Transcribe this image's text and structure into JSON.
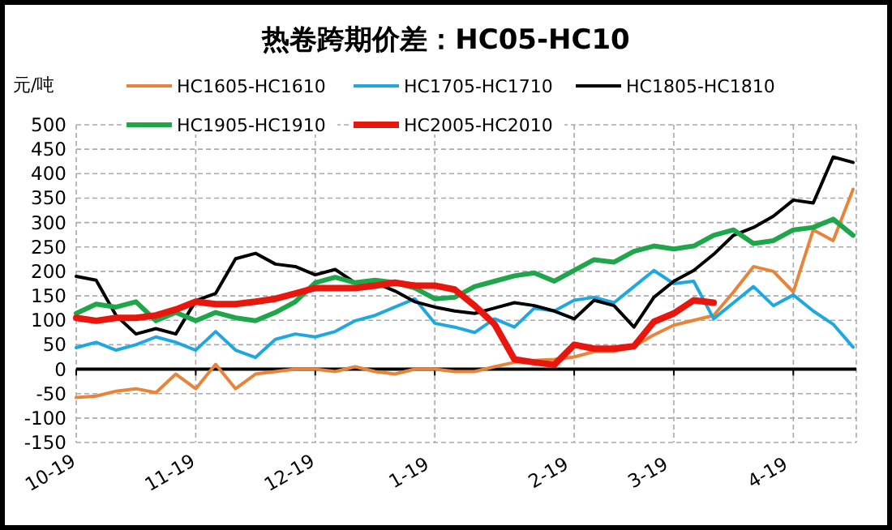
{
  "chart_data": {
    "type": "line",
    "title": "热卷跨期价差：HC05-HC10",
    "ylabel": "元/吨",
    "legend": "top",
    "grid": true,
    "categories": [
      "10-19",
      null,
      null,
      null,
      null,
      null,
      "11-19",
      null,
      null,
      null,
      null,
      null,
      "12-19",
      null,
      null,
      null,
      null,
      null,
      "1-19",
      null,
      null,
      null,
      null,
      null,
      null,
      "2-19",
      null,
      null,
      null,
      null,
      "3-19",
      null,
      null,
      null,
      null,
      null,
      "4-19",
      null,
      null,
      null
    ],
    "ylim": [
      -150,
      500
    ],
    "yticks": [
      -150,
      -100,
      -50,
      0,
      50,
      100,
      150,
      200,
      250,
      300,
      350,
      400,
      450,
      500
    ],
    "series": [
      {
        "name": "HC1605-HC1610",
        "color": "#e8843a",
        "values": [
          -58,
          -55,
          -45,
          -40,
          -48,
          -10,
          -40,
          10,
          -40,
          -10,
          -5,
          0,
          0,
          -5,
          5,
          -5,
          -10,
          0,
          0,
          -5,
          -5,
          5,
          14,
          18,
          20,
          25,
          36,
          36,
          47,
          70,
          90,
          100,
          110,
          158,
          210,
          200,
          158,
          285,
          263,
          368
        ]
      },
      {
        "name": "HC1705-HC1710",
        "color": "#1fa8e0",
        "values": [
          44,
          55,
          39,
          50,
          66,
          55,
          39,
          77,
          39,
          24,
          61,
          72,
          66,
          77,
          99,
          110,
          127,
          144,
          94,
          86,
          75,
          103,
          86,
          125,
          119,
          141,
          147,
          136,
          169,
          202,
          175,
          180,
          103,
          136,
          169,
          130,
          152,
          119,
          92,
          45
        ]
      },
      {
        "name": "HC1805-HC1810",
        "color": "#000000",
        "values": [
          190,
          182,
          110,
          72,
          83,
          72,
          140,
          155,
          226,
          237,
          215,
          210,
          193,
          204,
          177,
          177,
          160,
          138,
          127,
          119,
          114,
          125,
          136,
          130,
          119,
          103,
          141,
          130,
          86,
          147,
          180,
          202,
          235,
          274,
          290,
          313,
          346,
          340,
          434,
          423
        ]
      },
      {
        "name": "HC1905-HC1910",
        "color": "#1fa64a",
        "values": [
          114,
          133,
          127,
          138,
          99,
          116,
          99,
          116,
          105,
          99,
          116,
          138,
          177,
          188,
          177,
          182,
          177,
          166,
          144,
          147,
          169,
          180,
          191,
          197,
          180,
          202,
          224,
          219,
          241,
          252,
          246,
          252,
          274,
          285,
          257,
          263,
          285,
          290,
          307,
          274
        ]
      },
      {
        "name": "HC2005-HC2010",
        "color": "#e8170e",
        "values": [
          105,
          99,
          105,
          105,
          110,
          122,
          138,
          133,
          133,
          138,
          144,
          155,
          166,
          166,
          166,
          171,
          177,
          171,
          171,
          163,
          130,
          92,
          20,
          14,
          9,
          50,
          42,
          42,
          47,
          97,
          114,
          141,
          136,
          null,
          null,
          null,
          null,
          null,
          null,
          null
        ]
      }
    ]
  }
}
